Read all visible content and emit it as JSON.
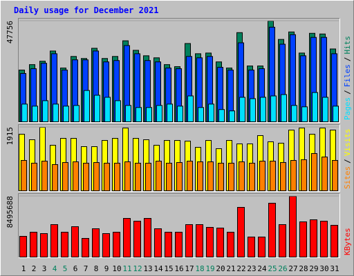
{
  "chart_data": [
    {
      "type": "bar",
      "title": "Daily usage for December 2021",
      "categories": [
        "1",
        "2",
        "3",
        "4",
        "5",
        "6",
        "7",
        "8",
        "9",
        "10",
        "11",
        "12",
        "13",
        "14",
        "15",
        "16",
        "17",
        "18",
        "19",
        "20",
        "21",
        "22",
        "23",
        "24",
        "25",
        "26",
        "27",
        "28",
        "29",
        "30",
        "31"
      ],
      "category_colors": [
        "#000000",
        "#000000",
        "#000000",
        "#00805c",
        "#00805c",
        "#000000",
        "#000000",
        "#000000",
        "#000000",
        "#000000",
        "#00805c",
        "#00805c",
        "#000000",
        "#000000",
        "#000000",
        "#000000",
        "#000000",
        "#00805c",
        "#00805c",
        "#000000",
        "#000000",
        "#000000",
        "#000000",
        "#000000",
        "#00805c",
        "#00805c",
        "#000000",
        "#000000",
        "#000000",
        "#000000",
        "#000000"
      ],
      "separator": "/",
      "ylim": [
        0,
        47756
      ],
      "yticks": [
        47756
      ],
      "series": [
        {
          "name": "Hits",
          "color": "#00805c",
          "values": [
            24523,
            27104,
            28717,
            33557,
            25491,
            30976,
            30008,
            34848,
            30008,
            30976,
            38398,
            33880,
            31299,
            30331,
            27104,
            26136,
            37107,
            32267,
            32590,
            28395,
            25491,
            42270,
            26459,
            26459,
            47756,
            39043,
            42592,
            32590,
            41947,
            41624,
            34525
          ]
        },
        {
          "name": "Files",
          "color": "#0040ff",
          "values": [
            22910,
            25168,
            27750,
            32267,
            24523,
            29363,
            29363,
            33557,
            28395,
            29040,
            36139,
            32267,
            29040,
            28395,
            25491,
            25168,
            30976,
            30331,
            30976,
            25814,
            24523,
            37430,
            24523,
            25168,
            44851,
            36784,
            41302,
            31299,
            40011,
            40011,
            32267
          ]
        },
        {
          "name": "Pages",
          "color": "#00e0ff",
          "values": [
            8389,
            7421,
            10003,
            8389,
            7421,
            7744,
            14843,
            12584,
            11616,
            10003,
            7744,
            6776,
            6776,
            7744,
            8389,
            7421,
            12261,
            6776,
            8389,
            5808,
            5163,
            11616,
            10971,
            11616,
            12261,
            12907,
            7744,
            7099,
            13875,
            11616,
            7421
          ]
        }
      ]
    },
    {
      "type": "bar",
      "separator": "/",
      "ylim": [
        0,
        1915
      ],
      "yticks": [
        1915
      ],
      "series": [
        {
          "name": "Visits",
          "color": "#ffff00",
          "values": [
            1707,
            1540,
            1915,
            1374,
            1582,
            1582,
            1332,
            1332,
            1519,
            1582,
            1894,
            1582,
            1540,
            1374,
            1519,
            1519,
            1499,
            1311,
            1519,
            1270,
            1519,
            1415,
            1415,
            1665,
            1478,
            1436,
            1832,
            1894,
            1707,
            1894,
            1832
          ]
        },
        {
          "name": "Sites",
          "color": "#ff8000",
          "values": [
            916,
            833,
            895,
            791,
            853,
            874,
            833,
            853,
            833,
            833,
            874,
            833,
            833,
            895,
            833,
            853,
            895,
            874,
            874,
            833,
            833,
            874,
            833,
            895,
            895,
            853,
            916,
            937,
            1124,
            1020,
            916
          ]
        }
      ]
    },
    {
      "type": "bar",
      "ylim": [
        0,
        8495688
      ],
      "yticks": [
        8495688
      ],
      "series": [
        {
          "name": "KBytes",
          "color": "#ff0000",
          "values": [
            2896000,
            3476000,
            3282000,
            4537000,
            3476000,
            4248000,
            2607000,
            3958000,
            3282000,
            3476000,
            5406000,
            5020000,
            5406000,
            3958000,
            3476000,
            3476000,
            4537000,
            4537000,
            4151000,
            4055000,
            3476000,
            6951000,
            2800000,
            2800000,
            7530000,
            4537000,
            8495688,
            4924000,
            5213000,
            5020000,
            4441000
          ]
        }
      ]
    }
  ]
}
